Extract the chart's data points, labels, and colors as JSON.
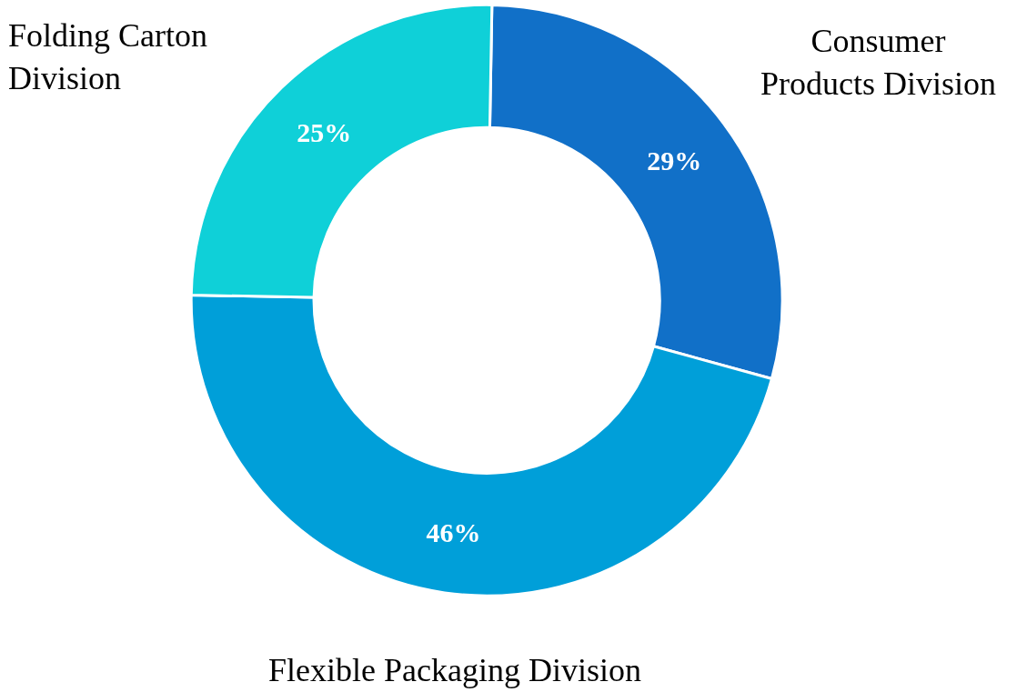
{
  "chart_data": {
    "type": "donut",
    "categories": [
      "Consumer Products Division",
      "Flexible Packaging Division",
      "Folding Carton Division"
    ],
    "values": [
      29,
      46,
      25
    ],
    "colors": [
      "#1170c8",
      "#009fd9",
      "#0fd0d8"
    ],
    "value_labels": [
      "29%",
      "46%",
      "25%"
    ],
    "legend": false
  }
}
